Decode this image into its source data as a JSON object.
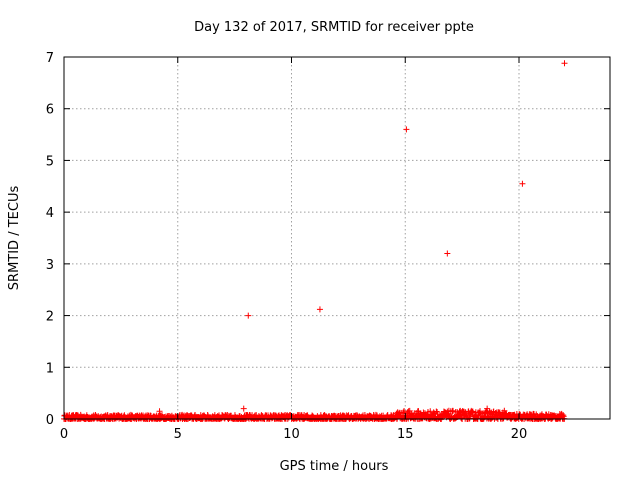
{
  "chart_data": {
    "type": "scatter",
    "title": "Day 132 of 2017, SRMTID for receiver ppte",
    "xlabel": "GPS time / hours",
    "ylabel": "SRMTID / TECUs",
    "xlim": [
      0,
      24
    ],
    "ylim": [
      0,
      7
    ],
    "xticks": [
      0,
      5,
      10,
      15,
      20
    ],
    "yticks": [
      0,
      1,
      2,
      3,
      4,
      5,
      6,
      7
    ],
    "xtick_labels": [
      "0",
      "5",
      "10",
      "15",
      "20"
    ],
    "ytick_labels": [
      "0",
      "1",
      "2",
      "3",
      "4",
      "5",
      "6",
      "7"
    ],
    "grid": true,
    "marker": "+",
    "marker_color": "#ff0000",
    "series": [
      {
        "name": "SRMTID",
        "color": "#ff0000",
        "outliers": [
          {
            "x": 8.1,
            "y": 2.0
          },
          {
            "x": 11.25,
            "y": 2.12
          },
          {
            "x": 15.05,
            "y": 5.6
          },
          {
            "x": 16.85,
            "y": 3.2
          },
          {
            "x": 20.15,
            "y": 4.55
          },
          {
            "x": 22.0,
            "y": 6.88
          },
          {
            "x": 7.9,
            "y": 0.2
          },
          {
            "x": 4.2,
            "y": 0.15
          },
          {
            "x": 18.6,
            "y": 0.2
          }
        ],
        "baseline_band": {
          "x_start": 0.0,
          "x_end": 22.0,
          "step_hours": 0.0167,
          "segments": [
            {
              "x_from": 0.0,
              "x_to": 14.5,
              "y_min": 0.0,
              "y_max": 0.08
            },
            {
              "x_from": 14.5,
              "x_to": 19.5,
              "y_min": 0.0,
              "y_max": 0.16
            },
            {
              "x_from": 19.5,
              "x_to": 22.0,
              "y_min": 0.0,
              "y_max": 0.1
            }
          ]
        }
      }
    ]
  }
}
